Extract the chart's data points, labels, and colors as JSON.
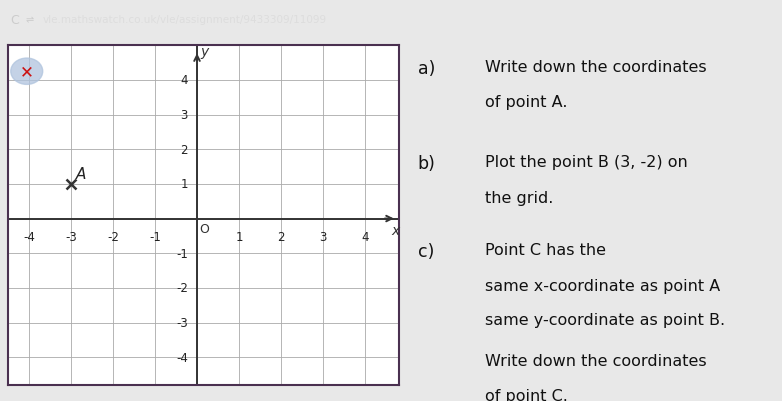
{
  "grid_xlim": [
    -4.5,
    4.8
  ],
  "grid_ylim": [
    -4.8,
    5.0
  ],
  "xticks": [
    -4,
    -3,
    -2,
    -1,
    0,
    1,
    2,
    3,
    4
  ],
  "yticks": [
    -4,
    -3,
    -2,
    -1,
    0,
    1,
    2,
    3,
    4
  ],
  "point_A": [
    -3,
    1
  ],
  "point_A_label": "A",
  "point_B": [
    3,
    -2
  ],
  "point_B_label": "B",
  "bg_color_main": "#e8e8e8",
  "bg_color_grid": "#ffffff",
  "grid_color": "#aaaaaa",
  "axis_color": "#333333",
  "border_color": "#4a3050",
  "text_color": "#111111",
  "text_a_label": "a)",
  "text_a_line1": "Write down the coordinates",
  "text_a_line2": "of point A.",
  "text_b_label": "b)",
  "text_b_line1": "Plot the point B (3, -2) on",
  "text_b_line2": "the grid.",
  "text_c_label": "c)",
  "text_c_line1": "Point C has the",
  "text_c_line2": "same x-coordinate as point A",
  "text_c_line3": "same y-coordinate as point B.",
  "text_c_line4": "Write down the coordinates",
  "text_c_line5": "of point C.",
  "browser_bar_color": "#3a3a3a",
  "browser_text": "vle.mathswatch.co.uk/vle/assignment/9433309/11099",
  "taskbar_color": "#222244",
  "fig_width": 7.82,
  "fig_height": 4.02,
  "fig_dpi": 100
}
